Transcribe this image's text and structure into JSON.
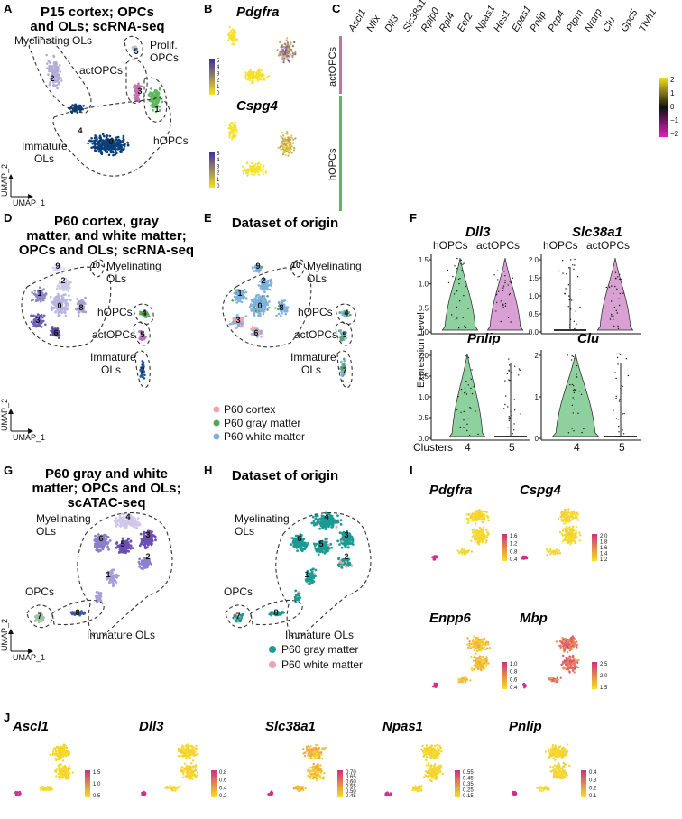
{
  "panels": {
    "A": {
      "letter": "A",
      "title": [
        "P15 cortex; OPCs",
        "and OLs; scRNA-seq"
      ],
      "labels": {
        "myel": "Myelinating OLs",
        "prolif1": "Prolif.",
        "prolif2": "OPCs",
        "act": "actOPCs",
        "hopc": "hOPCs",
        "imm1": "Immature",
        "imm2": "OLs"
      },
      "clusters": [
        "0",
        "1",
        "2",
        "3",
        "4",
        "5"
      ]
    },
    "B": {
      "letter": "B",
      "genes": [
        "Pdgfra",
        "Cspg4"
      ],
      "scale_ticks": [
        "5",
        "4",
        "3",
        "2",
        "1",
        "0"
      ]
    },
    "C": {
      "letter": "C",
      "genes": [
        "Ascl1",
        "Nfix",
        "Dll3",
        "Slc38a1",
        "Rplp0",
        "Rpl4",
        "Eef2",
        "Npas1",
        "Hes1",
        "Epas1",
        "Pnlip",
        "Pcp4",
        "Ptprn",
        "Nrarp",
        "Clu",
        "Gpc5",
        "Ttyh1"
      ],
      "groups": [
        "actOPCs",
        "hOPCs"
      ],
      "scale_ticks": [
        "2",
        "1",
        "0",
        "−1",
        "−2"
      ]
    },
    "D": {
      "letter": "D",
      "title": [
        "P60 cortex, gray",
        "matter, and white matter;",
        "OPCs and OLs; scRNA-seq"
      ],
      "labels": {
        "myel1": "Myelinating",
        "myel2": "OLs",
        "hopc": "hOPCs",
        "act": "actOPCs",
        "imm1": "Immature",
        "imm2": "OLs"
      },
      "clusters": [
        "0",
        "1",
        "2",
        "3",
        "4",
        "5",
        "6",
        "7",
        "8",
        "9",
        "10"
      ]
    },
    "E": {
      "letter": "E",
      "title": "Dataset of origin",
      "labels": {
        "myel1": "Myelinating",
        "myel2": "OLs",
        "hopc": "hOPCs",
        "act": "actOPCs",
        "imm1": "Immature",
        "imm2": "OLs"
      },
      "legend": [
        {
          "label": "P60 cortex",
          "color": "#f0a3ac"
        },
        {
          "label": "P60 gray matter",
          "color": "#55a463"
        },
        {
          "label": "P60 white matter",
          "color": "#7fb0e0"
        }
      ]
    },
    "F": {
      "letter": "F",
      "ylabel": "Expression Level",
      "xlabel": "Clusters",
      "violins": [
        {
          "gene": "Dll3",
          "groups": [
            "hOPCs",
            "actOPCs"
          ],
          "ticks": [
            "1.5",
            "1.0",
            "0.5",
            "0.0"
          ]
        },
        {
          "gene": "Slc38a1",
          "groups": [
            "hOPCs",
            "actOPCs"
          ],
          "ticks": [
            "2.0",
            "1.5",
            "1.0",
            "0.5",
            "0.0"
          ]
        },
        {
          "gene": "Pnlip",
          "ticks": [
            "2.0",
            "1.5",
            "1.0",
            "0.5",
            "0.0"
          ],
          "x": [
            "4",
            "5"
          ]
        },
        {
          "gene": "Clu",
          "ticks": [
            "2",
            "1",
            "0"
          ],
          "x": [
            "4",
            "5"
          ]
        }
      ]
    },
    "G": {
      "letter": "G",
      "title": [
        "P60 gray and white",
        "matter; OPCs and OLs;",
        "scATAC-seq"
      ],
      "labels": {
        "myel1": "Myelinating",
        "myel2": "OLs",
        "opc": "OPCs",
        "imm": "Immature OLs"
      },
      "clusters": [
        "1",
        "2",
        "3",
        "4",
        "5",
        "6",
        "7",
        "8"
      ]
    },
    "H": {
      "letter": "H",
      "title": "Dataset of origin",
      "labels": {
        "myel1": "Myelinating",
        "myel2": "OLs",
        "opc": "OPCs",
        "imm": "Immature OLs"
      },
      "legend": [
        {
          "label": "P60 gray matter",
          "color": "#1a9b93"
        },
        {
          "label": "P60 white matter",
          "color": "#f0a3ac"
        }
      ]
    },
    "I": {
      "letter": "I",
      "plots": [
        {
          "gene": "Pdgfra",
          "ticks": [
            "1.6",
            "1.2",
            "0.8",
            "0.4"
          ]
        },
        {
          "gene": "Cspg4",
          "ticks": [
            "2.0",
            "1.8",
            "1.6",
            "1.4",
            "1.2"
          ]
        },
        {
          "gene": "Enpp6",
          "ticks": [
            "1.0",
            "0.8",
            "0.6",
            "0.4"
          ]
        },
        {
          "gene": "Mbp",
          "ticks": [
            "2.5",
            "2.0",
            "1.5"
          ]
        }
      ]
    },
    "J": {
      "letter": "J",
      "plots": [
        {
          "gene": "Ascl1",
          "ticks": [
            "1.5",
            "1.0",
            "0.5"
          ]
        },
        {
          "gene": "Dll3",
          "ticks": [
            "0.8",
            "0.6",
            "0.4",
            "0.2"
          ]
        },
        {
          "gene": "Slc38a1",
          "ticks": [
            "0.70",
            "0.65",
            "0.60",
            "0.55",
            "0.50",
            "0.45"
          ]
        },
        {
          "gene": "Npas1",
          "ticks": [
            "0.55",
            "0.45",
            "0.35",
            "0.25",
            "0.15"
          ]
        },
        {
          "gene": "Pnlip",
          "ticks": [
            "0.4",
            "0.3",
            "0.2",
            "0.1"
          ]
        }
      ]
    }
  },
  "umap_axes": {
    "x": "UMAP_1",
    "y": "UMAP_2"
  },
  "colors": {
    "dark_blue": "#0b3f7a",
    "green": "#5cb85c",
    "pink": "#c56fb0",
    "lavender": "#b3acd9",
    "purple": "#7b62b7",
    "teal": "#1a9b93",
    "yellow": "#f5e12a",
    "magenta": "#d42e8a",
    "violin_green": "#8fd19e",
    "violin_pink": "#d9a0d3"
  }
}
